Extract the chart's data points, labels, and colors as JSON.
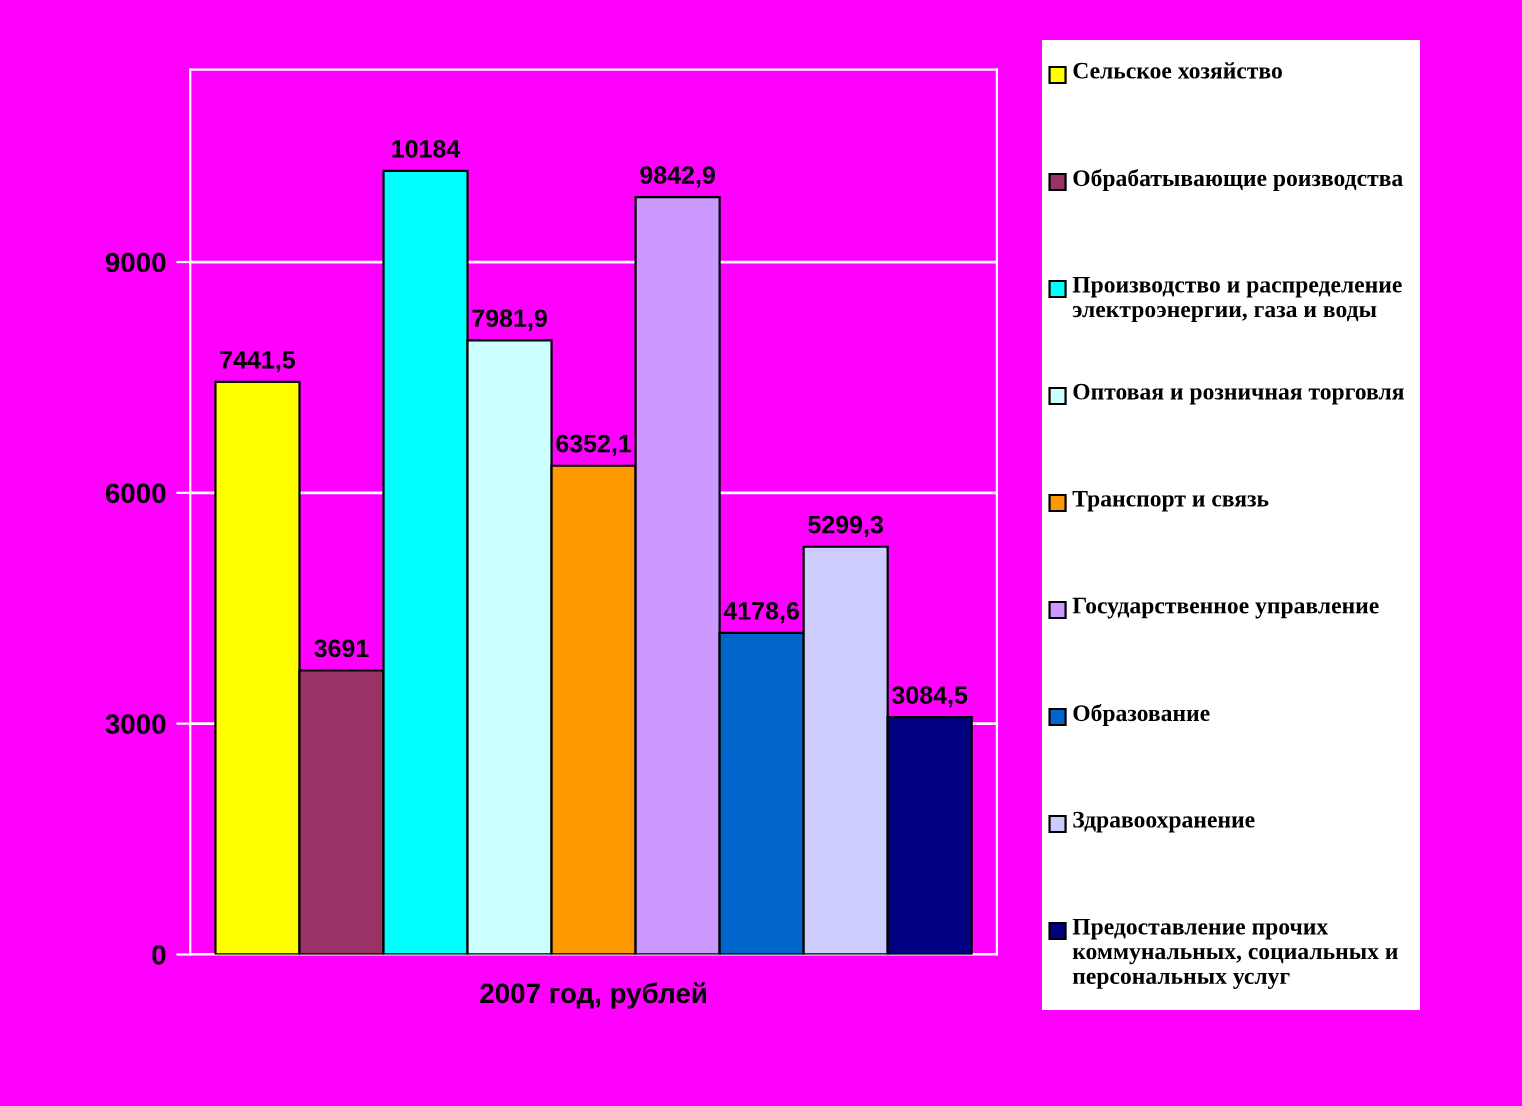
{
  "chart_data": {
    "type": "bar",
    "categories": [
      "2007 год, рублей"
    ],
    "series": [
      {
        "name": "Сельское хозяйство",
        "color": "#ffff00",
        "values": [
          7441.5
        ],
        "value_labels": [
          "7441,5"
        ]
      },
      {
        "name": "Обрабатывающие роизводства",
        "color": "#993366",
        "values": [
          3691
        ],
        "value_labels": [
          "3691"
        ]
      },
      {
        "name": "Производство и распределение электроэнергии, газа и воды",
        "color": "#00ffff",
        "values": [
          10184
        ],
        "value_labels": [
          "10184"
        ]
      },
      {
        "name": "Оптовая и розничная торговля",
        "color": "#ccffff",
        "values": [
          7981.9
        ],
        "value_labels": [
          "7981,9"
        ]
      },
      {
        "name": "Транспорт и связь",
        "color": "#ff9900",
        "values": [
          6352.1
        ],
        "value_labels": [
          "6352,1"
        ]
      },
      {
        "name": "Государственное управление",
        "color": "#cc99ff",
        "values": [
          9842.9
        ],
        "value_labels": [
          "9842,9"
        ]
      },
      {
        "name": "Образование",
        "color": "#0066cc",
        "values": [
          4178.6
        ],
        "value_labels": [
          "4178,6"
        ]
      },
      {
        "name": "Здравоохранение",
        "color": "#ccccff",
        "values": [
          5299.3
        ],
        "value_labels": [
          "5299,3"
        ]
      },
      {
        "name": "Предоставление прочих коммунальных, социальных и персональных услуг",
        "color": "#000080",
        "values": [
          3084.5
        ],
        "value_labels": [
          "3084,5"
        ]
      }
    ],
    "ylim": [
      0,
      11500
    ],
    "yticks": [
      0,
      3000,
      6000,
      9000
    ],
    "grid": "y",
    "legend": "right"
  }
}
